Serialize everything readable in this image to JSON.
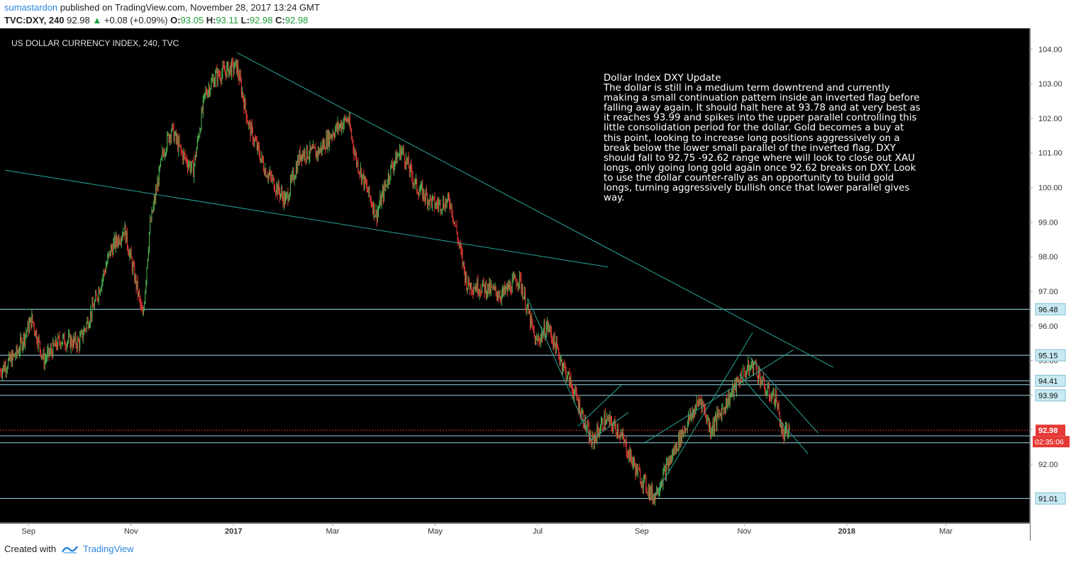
{
  "header": {
    "author": "sumastardon",
    "published_text": "published on TradingView.com, November 28, 2017 13:24 GMT",
    "symbol": "TVC:DXY, 240",
    "last": "92.98",
    "change": "+0.08 (+0.09%)",
    "open_label": "O:",
    "open": "93.05",
    "high_label": "H:",
    "high": "93.11",
    "low_label": "L:",
    "low": "92.98",
    "close_label": "C:",
    "close": "92.98"
  },
  "note": {
    "title": "Dollar Index  DXY  Update",
    "body": "The dollar is still in a medium term downtrend and currently making a small continuation pattern inside an inverted flag before falling away again. It should halt here at 93.78 and at very best as it reaches 93.99 and spikes into the upper parallel controlling this little consolidation period for the dollar. Gold becomes a buy at this point, looking to increase long positions aggressively on a break below the lower small parallel of the inverted flag. DXY should fall to 92.75 -92.62 range where will look to close out XAU longs, only going long gold again once 92.62 breaks on DXY. Look to use the dollar counter-rally as an opportunity to build gold longs, turning aggressively bullish once that lower parallel gives way."
  },
  "footer": {
    "created_with": "Created with",
    "brand": "TradingView"
  },
  "colors": {
    "background": "#000000",
    "up_candle": "#4caf50",
    "down_candle": "#e53935",
    "trendline": "#26a69a",
    "level_line": "#9ad8e8",
    "price_line": "#e53935"
  },
  "chart_data": {
    "type": "candlestick",
    "title": "US DOLLAR CURRENCY INDEX, 240, TVC",
    "y_range": [
      90.3,
      104.3
    ],
    "y_ticks": [
      "104.00",
      "103.00",
      "102.00",
      "101.00",
      "100.00",
      "99.00",
      "98.00",
      "97.00",
      "96.00",
      "95.00",
      "94.00",
      "93.00",
      "92.00"
    ],
    "x_range": [
      "2016-08-15",
      "2018-04-20"
    ],
    "x_ticks": [
      {
        "label": "Sep",
        "date": "2016-09-01",
        "bold": false
      },
      {
        "label": "Nov",
        "date": "2016-11-01",
        "bold": false
      },
      {
        "label": "2017",
        "date": "2017-01-01",
        "bold": true
      },
      {
        "label": "Mar",
        "date": "2017-03-01",
        "bold": false
      },
      {
        "label": "May",
        "date": "2017-05-01",
        "bold": false
      },
      {
        "label": "Jul",
        "date": "2017-07-01",
        "bold": false
      },
      {
        "label": "Sep",
        "date": "2017-09-01",
        "bold": false
      },
      {
        "label": "Nov",
        "date": "2017-11-01",
        "bold": false
      },
      {
        "label": "2018",
        "date": "2018-01-01",
        "bold": true
      },
      {
        "label": "Mar",
        "date": "2018-03-01",
        "bold": false
      }
    ],
    "price_path": [
      [
        "2016-08-15",
        94.7
      ],
      [
        "2016-08-25",
        95.2
      ],
      [
        "2016-09-03",
        96.2
      ],
      [
        "2016-09-10",
        95.0
      ],
      [
        "2016-09-20",
        95.6
      ],
      [
        "2016-10-01",
        95.5
      ],
      [
        "2016-10-10",
        96.6
      ],
      [
        "2016-10-20",
        98.2
      ],
      [
        "2016-10-28",
        98.8
      ],
      [
        "2016-11-05",
        97.0
      ],
      [
        "2016-11-08",
        96.2
      ],
      [
        "2016-11-12",
        98.8
      ],
      [
        "2016-11-20",
        101.0
      ],
      [
        "2016-11-25",
        101.7
      ],
      [
        "2016-12-01",
        101.0
      ],
      [
        "2016-12-08",
        100.5
      ],
      [
        "2016-12-15",
        102.7
      ],
      [
        "2016-12-21",
        103.2
      ],
      [
        "2016-12-28",
        103.4
      ],
      [
        "2017-01-03",
        103.5
      ],
      [
        "2017-01-10",
        101.8
      ],
      [
        "2017-01-20",
        100.5
      ],
      [
        "2017-02-01",
        99.6
      ],
      [
        "2017-02-10",
        101.0
      ],
      [
        "2017-02-20",
        101.0
      ],
      [
        "2017-03-01",
        101.6
      ],
      [
        "2017-03-10",
        102.0
      ],
      [
        "2017-03-15",
        100.8
      ],
      [
        "2017-03-27",
        99.2
      ],
      [
        "2017-04-05",
        100.6
      ],
      [
        "2017-04-11",
        101.1
      ],
      [
        "2017-04-20",
        100.0
      ],
      [
        "2017-05-01",
        99.5
      ],
      [
        "2017-05-10",
        99.6
      ],
      [
        "2017-05-20",
        97.2
      ],
      [
        "2017-05-31",
        97.1
      ],
      [
        "2017-06-10",
        96.9
      ],
      [
        "2017-06-20",
        97.4
      ],
      [
        "2017-06-30",
        95.5
      ],
      [
        "2017-07-07",
        96.0
      ],
      [
        "2017-07-15",
        95.0
      ],
      [
        "2017-07-25",
        93.8
      ],
      [
        "2017-08-02",
        92.6
      ],
      [
        "2017-08-10",
        93.3
      ],
      [
        "2017-08-18",
        93.0
      ],
      [
        "2017-08-29",
        91.8
      ],
      [
        "2017-09-08",
        91.05
      ],
      [
        "2017-09-15",
        91.8
      ],
      [
        "2017-09-25",
        92.9
      ],
      [
        "2017-10-06",
        93.9
      ],
      [
        "2017-10-12",
        93.0
      ],
      [
        "2017-10-25",
        94.1
      ],
      [
        "2017-10-31",
        94.6
      ],
      [
        "2017-11-07",
        94.9
      ],
      [
        "2017-11-14",
        94.1
      ],
      [
        "2017-11-20",
        93.9
      ],
      [
        "2017-11-24",
        92.8
      ],
      [
        "2017-11-28",
        92.98
      ]
    ],
    "horizontal_levels": [
      {
        "value": 96.48,
        "label": "96.48"
      },
      {
        "value": 95.15,
        "label": "95.15"
      },
      {
        "value": 94.41,
        "label": "94.41"
      },
      {
        "value": 94.3,
        "label": ""
      },
      {
        "value": 93.99,
        "label": "93.99"
      },
      {
        "value": 92.82,
        "label": ""
      },
      {
        "value": 92.62,
        "label": ""
      },
      {
        "value": 91.01,
        "label": "91.01"
      }
    ],
    "last_price": {
      "value": 92.98,
      "label": "92.98",
      "countdown": "02:35:06"
    },
    "trendlines": [
      [
        [
          "2017-01-03",
          103.9
        ],
        [
          "2017-12-24",
          94.8
        ]
      ],
      [
        [
          "2016-08-18",
          100.5
        ],
        [
          "2017-08-12",
          97.7
        ]
      ],
      [
        [
          "2017-06-25",
          96.8
        ],
        [
          "2017-08-02",
          92.7
        ]
      ],
      [
        [
          "2017-07-25",
          93.1
        ],
        [
          "2017-08-20",
          94.3
        ]
      ],
      [
        [
          "2017-08-02",
          92.7
        ],
        [
          "2017-08-24",
          93.5
        ]
      ],
      [
        [
          "2017-09-08",
          91.05
        ],
        [
          "2017-11-06",
          95.8
        ]
      ],
      [
        [
          "2017-09-02",
          92.6
        ],
        [
          "2017-11-30",
          95.3
        ]
      ],
      [
        [
          "2017-11-04",
          95.1
        ],
        [
          "2017-12-15",
          92.9
        ]
      ],
      [
        [
          "2017-10-29",
          94.6
        ],
        [
          "2017-12-09",
          92.3
        ]
      ]
    ]
  }
}
